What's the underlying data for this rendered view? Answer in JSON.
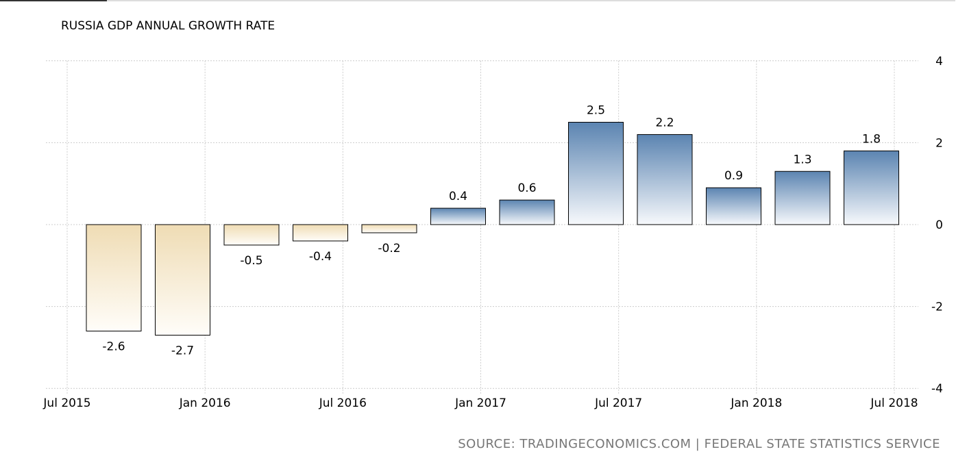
{
  "chart_data": {
    "type": "bar",
    "title": "RUSSIA GDP ANNUAL GROWTH RATE",
    "categories": [
      "2015-09",
      "2015-12",
      "2016-03",
      "2016-06",
      "2016-09",
      "2016-12",
      "2017-03",
      "2017-06",
      "2017-09",
      "2017-12",
      "2018-03",
      "2018-06"
    ],
    "values": [
      -2.6,
      -2.7,
      -0.5,
      -0.4,
      -0.2,
      0.4,
      0.6,
      2.5,
      2.2,
      0.9,
      1.3,
      1.8
    ],
    "data_labels": [
      "-2.6",
      "-2.7",
      "-0.5",
      "-0.4",
      "-0.2",
      "0.4",
      "0.6",
      "2.5",
      "2.2",
      "0.9",
      "1.3",
      "1.8"
    ],
    "x_ticks": [
      {
        "date": "2015-07",
        "label": "Jul 2015"
      },
      {
        "date": "2016-01",
        "label": "Jan 2016"
      },
      {
        "date": "2016-07",
        "label": "Jul 2016"
      },
      {
        "date": "2017-01",
        "label": "Jan 2017"
      },
      {
        "date": "2017-07",
        "label": "Jul 2017"
      },
      {
        "date": "2018-01",
        "label": "Jan 2018"
      },
      {
        "date": "2018-07",
        "label": "Jul 2018"
      }
    ],
    "y_ticks": [
      4,
      2,
      0,
      -2,
      -4
    ],
    "ylim": [
      -4,
      4
    ],
    "y_axis_position": "right",
    "grid": true,
    "colors": {
      "positive": "#5b84b1",
      "negative": "#efdcb4"
    }
  },
  "source": "SOURCE: TRADINGECONOMICS.COM | FEDERAL STATE STATISTICS SERVICE"
}
